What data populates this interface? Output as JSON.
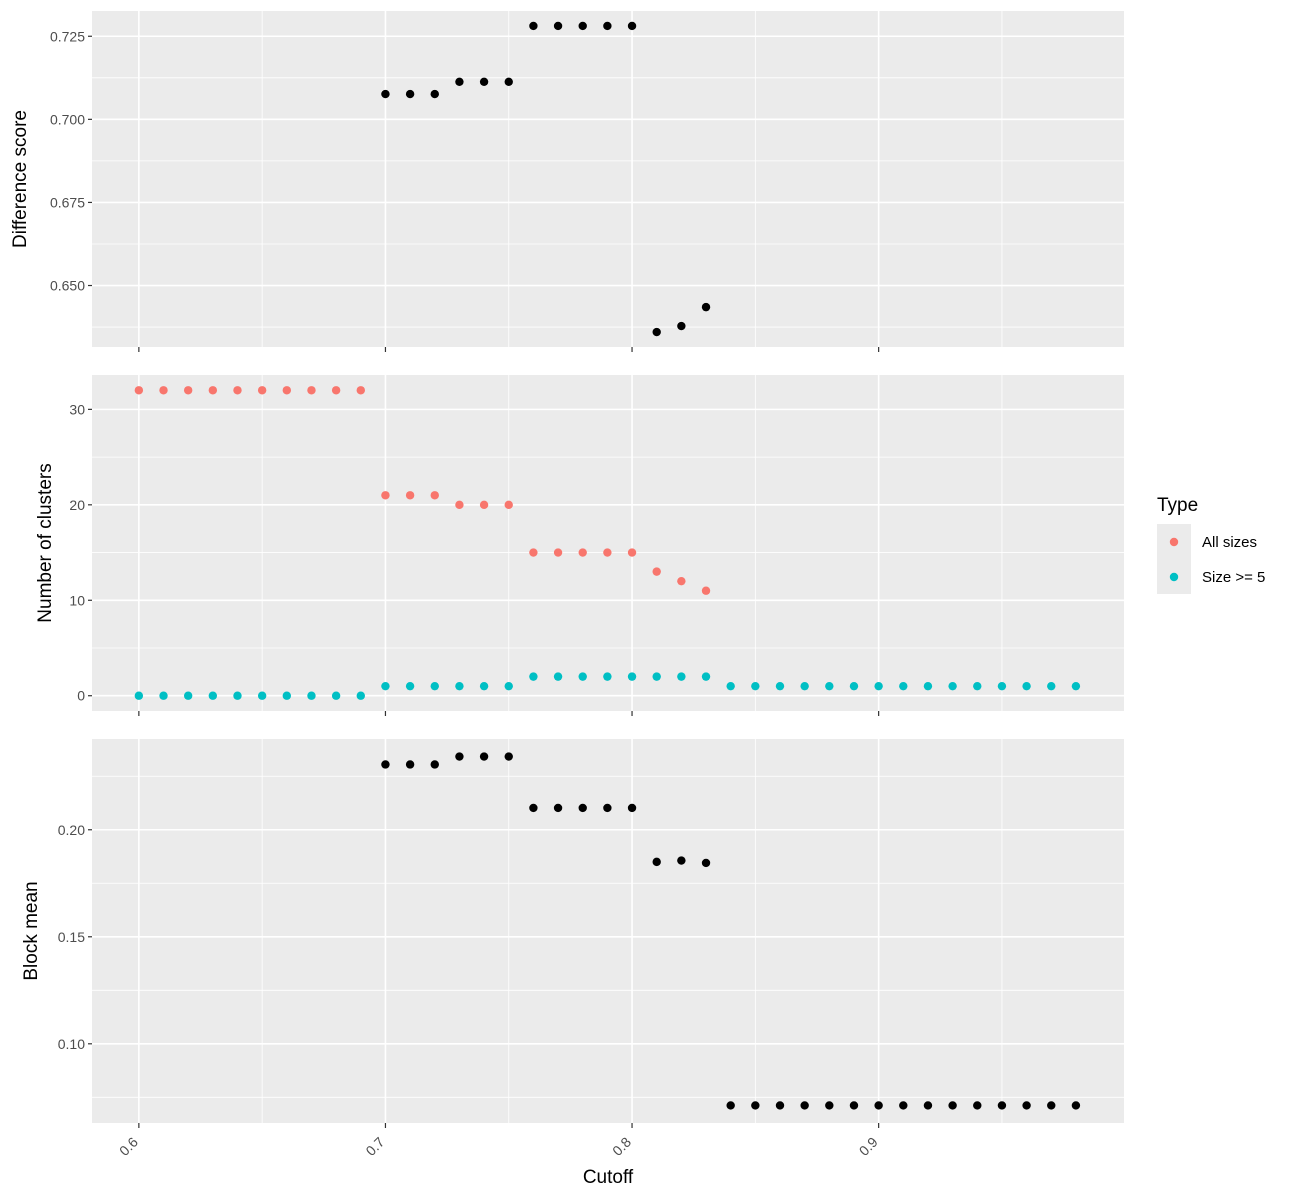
{
  "chart_data": {
    "type": "scatter",
    "xlabel": "Cutoff",
    "x_ticks": [
      "0.6",
      "0.7",
      "0.8",
      "0.9"
    ],
    "x_tick_values": [
      0.6,
      0.7,
      0.8,
      0.9
    ],
    "xlim": [
      0.581,
      0.9995
    ],
    "grid": true,
    "legend": {
      "title": "Type",
      "placement": "right",
      "entries": [
        {
          "label": "All sizes",
          "color": "#F8766D"
        },
        {
          "label": "Size >= 5",
          "color": "#00BFC4"
        }
      ]
    },
    "panels": [
      {
        "ylabel": "Difference score",
        "y_ticks": [
          "0.650",
          "0.675",
          "0.700",
          "0.725"
        ],
        "y_tick_values": [
          0.65,
          0.675,
          0.7,
          0.725
        ],
        "ylim": [
          0.6315,
          0.7326
        ],
        "series": [
          {
            "color": "#000000",
            "x": [
              0.7,
              0.71,
              0.72,
              0.73,
              0.74,
              0.75,
              0.76,
              0.77,
              0.78,
              0.79,
              0.8,
              0.81,
              0.82,
              0.83
            ],
            "y": [
              0.7076,
              0.7076,
              0.7076,
              0.7113,
              0.7113,
              0.7113,
              0.7281,
              0.7281,
              0.7281,
              0.7281,
              0.7281,
              0.636,
              0.6378,
              0.6435
            ]
          }
        ]
      },
      {
        "ylabel": "Number of clusters",
        "y_ticks": [
          "0",
          "10",
          "20",
          "30"
        ],
        "y_tick_values": [
          0,
          10,
          20,
          30
        ],
        "ylim": [
          -1.6,
          33.6
        ],
        "series": [
          {
            "name": "All sizes",
            "color": "#F8766D",
            "x": [
              0.6,
              0.61,
              0.62,
              0.63,
              0.64,
              0.65,
              0.66,
              0.67,
              0.68,
              0.69,
              0.7,
              0.71,
              0.72,
              0.73,
              0.74,
              0.75,
              0.76,
              0.77,
              0.78,
              0.79,
              0.8,
              0.81,
              0.82,
              0.83
            ],
            "y": [
              32,
              32,
              32,
              32,
              32,
              32,
              32,
              32,
              32,
              32,
              21,
              21,
              21,
              20,
              20,
              20,
              15,
              15,
              15,
              15,
              15,
              13,
              12,
              11
            ]
          },
          {
            "name": "Size >= 5",
            "color": "#00BFC4",
            "x": [
              0.6,
              0.61,
              0.62,
              0.63,
              0.64,
              0.65,
              0.66,
              0.67,
              0.68,
              0.69,
              0.7,
              0.71,
              0.72,
              0.73,
              0.74,
              0.75,
              0.76,
              0.77,
              0.78,
              0.79,
              0.8,
              0.81,
              0.82,
              0.83,
              0.84,
              0.85,
              0.86,
              0.87,
              0.88,
              0.89,
              0.9,
              0.91,
              0.92,
              0.93,
              0.94,
              0.95,
              0.96,
              0.97,
              0.98
            ],
            "y": [
              0,
              0,
              0,
              0,
              0,
              0,
              0,
              0,
              0,
              0,
              1,
              1,
              1,
              1,
              1,
              1,
              2,
              2,
              2,
              2,
              2,
              2,
              2,
              2,
              1,
              1,
              1,
              1,
              1,
              1,
              1,
              1,
              1,
              1,
              1,
              1,
              1,
              1,
              1
            ]
          }
        ]
      },
      {
        "ylabel": "Block mean",
        "y_ticks": [
          "0.10",
          "0.15",
          "0.20"
        ],
        "y_tick_values": [
          0.1,
          0.15,
          0.2
        ],
        "ylim": [
          0.063,
          0.2424
        ],
        "series": [
          {
            "color": "#000000",
            "x": [
              0.7,
              0.71,
              0.72,
              0.73,
              0.74,
              0.75,
              0.76,
              0.77,
              0.78,
              0.79,
              0.8,
              0.81,
              0.82,
              0.83,
              0.84,
              0.85,
              0.86,
              0.87,
              0.88,
              0.89,
              0.9,
              0.91,
              0.92,
              0.93,
              0.94,
              0.95,
              0.96,
              0.97,
              0.98
            ],
            "y": [
              0.2305,
              0.2305,
              0.2305,
              0.2342,
              0.2342,
              0.2342,
              0.2102,
              0.2102,
              0.2102,
              0.2102,
              0.2102,
              0.185,
              0.1856,
              0.1845,
              0.0712,
              0.0712,
              0.0712,
              0.0712,
              0.0712,
              0.0712,
              0.0712,
              0.0712,
              0.0712,
              0.0712,
              0.0712,
              0.0712,
              0.0712,
              0.0712,
              0.0712
            ]
          }
        ]
      }
    ]
  }
}
